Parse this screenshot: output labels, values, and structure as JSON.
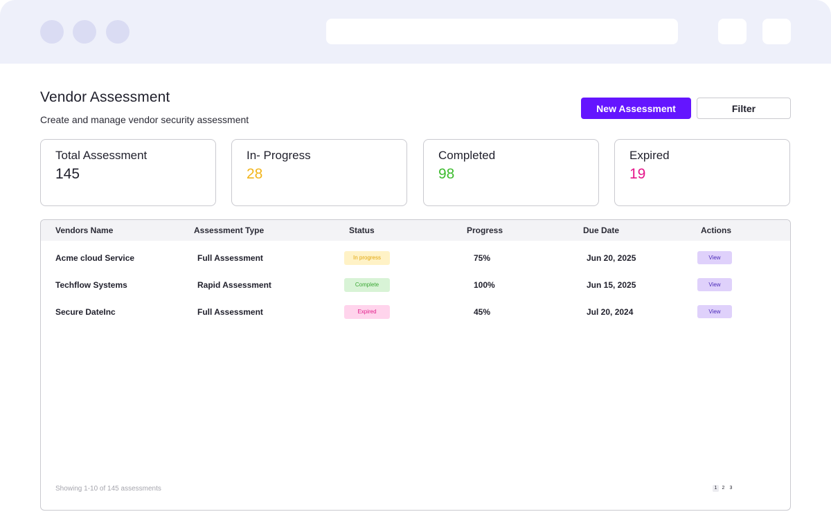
{
  "header": {
    "title": "Vendor Assessment",
    "subtitle": "Create and manage vendor security assessment",
    "new_button_label": "New Assessment",
    "filter_button_label": "Filter"
  },
  "stats": [
    {
      "label": "Total Assessment",
      "value": "145",
      "color": "#1f1f2b"
    },
    {
      "label": "In- Progress",
      "value": "28",
      "color": "#f2b51c"
    },
    {
      "label": "Completed",
      "value": "98",
      "color": "#3ebc2f"
    },
    {
      "label": "Expired",
      "value": "19",
      "color": "#e5158a"
    }
  ],
  "table": {
    "columns": [
      "Vendors Name",
      "Assessment Type",
      "Status",
      "Progress",
      "Due Date",
      "Actions"
    ],
    "rows": [
      {
        "vendor": "Acme cloud Service",
        "type": "Full Assessment",
        "status": "In progress",
        "progress": "75%",
        "due": "Jun 20, 2025",
        "action": "View"
      },
      {
        "vendor": "Techflow Systems",
        "type": "Rapid Assessment",
        "status": "Complete",
        "progress": "100%",
        "due": "Jun 15, 2025",
        "action": "View"
      },
      {
        "vendor": "Secure DateInc",
        "type": "Full Assessment",
        "status": "Expired",
        "progress": "45%",
        "due": "Jul 20, 2024",
        "action": "View"
      }
    ],
    "footer_text": "Showing 1-10 of 145 assessments",
    "pages": [
      "1",
      "2",
      "3"
    ]
  }
}
